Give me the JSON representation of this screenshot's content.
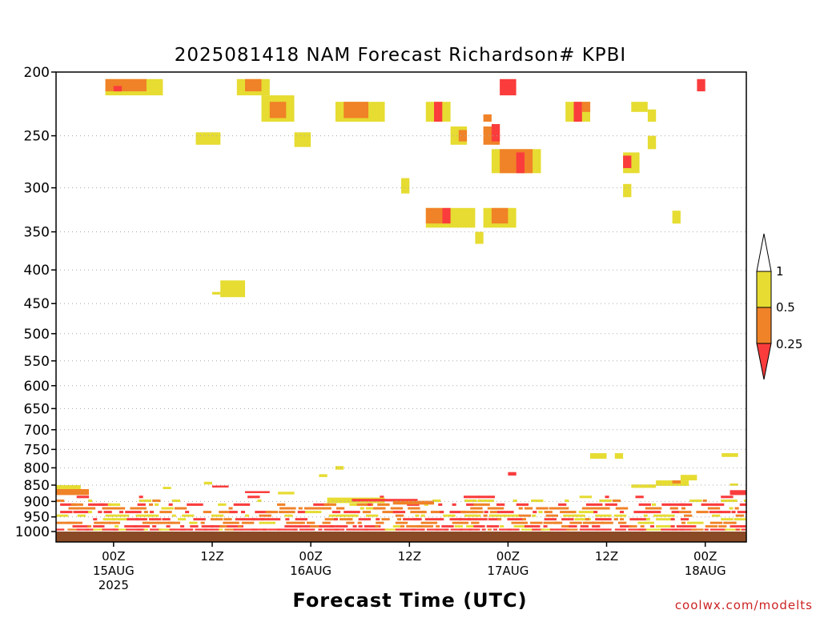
{
  "chart_data": {
    "type": "heatmap",
    "title": "2025081418 NAM Forecast Richardson# KPBI",
    "xlabel": "Forecast Time (UTC)",
    "ylabel": "",
    "credit": "coolwx.com/modelts",
    "grid": true,
    "y_scale": "log-pressure, inverted",
    "ylim": [
      1000,
      200
    ],
    "y_ticks": [
      {
        "value": 200,
        "label": "200"
      },
      {
        "value": 250,
        "label": "250"
      },
      {
        "value": 300,
        "label": "300"
      },
      {
        "value": 350,
        "label": "350"
      },
      {
        "value": 400,
        "label": "400"
      },
      {
        "value": 450,
        "label": "450"
      },
      {
        "value": 500,
        "label": "500"
      },
      {
        "value": 550,
        "label": "550"
      },
      {
        "value": 600,
        "label": "600"
      },
      {
        "value": 650,
        "label": "650"
      },
      {
        "value": 700,
        "label": "700"
      },
      {
        "value": 750,
        "label": "750"
      },
      {
        "value": 800,
        "label": "800"
      },
      {
        "value": 850,
        "label": "850"
      },
      {
        "value": 900,
        "label": "900"
      },
      {
        "value": 950,
        "label": "950"
      },
      {
        "value": 1000,
        "label": "1000"
      }
    ],
    "x_range_hours": [
      -7,
      77
    ],
    "x_ticks": [
      {
        "hour": 0,
        "lines": [
          "00Z",
          "15AUG",
          "2025"
        ]
      },
      {
        "hour": 12,
        "lines": [
          "12Z"
        ]
      },
      {
        "hour": 24,
        "lines": [
          "00Z",
          "16AUG"
        ]
      },
      {
        "hour": 36,
        "lines": [
          "12Z"
        ]
      },
      {
        "hour": 48,
        "lines": [
          "00Z",
          "17AUG"
        ]
      },
      {
        "hour": 60,
        "lines": [
          "12Z"
        ]
      },
      {
        "hour": 72,
        "lines": [
          "00Z",
          "18AUG"
        ]
      }
    ],
    "legend": {
      "placement": "right",
      "labels": [
        "1",
        "0.5",
        "0.25"
      ],
      "bins": [
        {
          "range": "> 1",
          "color": "#ffffff"
        },
        {
          "range": "0.5 - 1",
          "color": "#e6dc32"
        },
        {
          "range": "0.25 - 0.5",
          "color": "#f08228"
        },
        {
          "range": "< 0.25",
          "color": "#fa3c3c"
        }
      ]
    },
    "colors": {
      "low": "#fa3c3c",
      "mid": "#f08228",
      "high": "#e6dc32",
      "ground": "#8b4a26"
    },
    "upper_regions": [
      {
        "h0": -1,
        "h1": 6,
        "p0": 205,
        "p1": 217,
        "c": "high"
      },
      {
        "h0": -1,
        "h1": 4,
        "p0": 205,
        "p1": 214,
        "c": "mid"
      },
      {
        "h0": 0,
        "h1": 1,
        "p0": 210,
        "p1": 214,
        "c": "low"
      },
      {
        "h0": 15,
        "h1": 19,
        "p0": 205,
        "p1": 217,
        "c": "high"
      },
      {
        "h0": 16,
        "h1": 18,
        "p0": 205,
        "p1": 214,
        "c": "mid"
      },
      {
        "h0": 18,
        "h1": 22,
        "p0": 217,
        "p1": 238,
        "c": "high"
      },
      {
        "h0": 19,
        "h1": 21,
        "p0": 222,
        "p1": 235,
        "c": "mid"
      },
      {
        "h0": 27,
        "h1": 33,
        "p0": 222,
        "p1": 238,
        "c": "high"
      },
      {
        "h0": 28,
        "h1": 31,
        "p0": 222,
        "p1": 235,
        "c": "mid"
      },
      {
        "h0": 10,
        "h1": 13,
        "p0": 247,
        "p1": 258,
        "c": "high"
      },
      {
        "h0": 22,
        "h1": 24,
        "p0": 247,
        "p1": 260,
        "c": "high"
      },
      {
        "h0": 35,
        "h1": 36,
        "p0": 290,
        "p1": 306,
        "c": "high"
      },
      {
        "h0": 38,
        "h1": 41,
        "p0": 222,
        "p1": 238,
        "c": "high"
      },
      {
        "h0": 39,
        "h1": 40,
        "p0": 222,
        "p1": 238,
        "c": "low"
      },
      {
        "h0": 41,
        "h1": 43,
        "p0": 242,
        "p1": 258,
        "c": "high"
      },
      {
        "h0": 42,
        "h1": 43,
        "p0": 245,
        "p1": 255,
        "c": "mid"
      },
      {
        "h0": 45,
        "h1": 46,
        "p0": 232,
        "p1": 238,
        "c": "mid"
      },
      {
        "h0": 45,
        "h1": 47,
        "p0": 242,
        "p1": 258,
        "c": "mid"
      },
      {
        "h0": 46,
        "h1": 47,
        "p0": 240,
        "p1": 255,
        "c": "low"
      },
      {
        "h0": 47,
        "h1": 49,
        "p0": 205,
        "p1": 217,
        "c": "low"
      },
      {
        "h0": 46,
        "h1": 52,
        "p0": 262,
        "p1": 285,
        "c": "high"
      },
      {
        "h0": 47,
        "h1": 51,
        "p0": 262,
        "p1": 285,
        "c": "mid"
      },
      {
        "h0": 49,
        "h1": 50,
        "p0": 265,
        "p1": 285,
        "c": "low"
      },
      {
        "h0": 55,
        "h1": 58,
        "p0": 222,
        "p1": 238,
        "c": "high"
      },
      {
        "h0": 56,
        "h1": 57,
        "p0": 222,
        "p1": 238,
        "c": "low"
      },
      {
        "h0": 57,
        "h1": 58,
        "p0": 222,
        "p1": 230,
        "c": "mid"
      },
      {
        "h0": 63,
        "h1": 65,
        "p0": 222,
        "p1": 230,
        "c": "high"
      },
      {
        "h0": 62,
        "h1": 64,
        "p0": 265,
        "p1": 285,
        "c": "high"
      },
      {
        "h0": 62,
        "h1": 63,
        "p0": 268,
        "p1": 280,
        "c": "low"
      },
      {
        "h0": 65,
        "h1": 66,
        "p0": 250,
        "p1": 262,
        "c": "high"
      },
      {
        "h0": 71,
        "h1": 72,
        "p0": 205,
        "p1": 214,
        "c": "low"
      },
      {
        "h0": 62,
        "h1": 63,
        "p0": 296,
        "p1": 310,
        "c": "high"
      },
      {
        "h0": 38,
        "h1": 44,
        "p0": 322,
        "p1": 345,
        "c": "high"
      },
      {
        "h0": 38,
        "h1": 40,
        "p0": 322,
        "p1": 340,
        "c": "mid"
      },
      {
        "h0": 40,
        "h1": 41,
        "p0": 322,
        "p1": 340,
        "c": "low"
      },
      {
        "h0": 44,
        "h1": 45,
        "p0": 350,
        "p1": 365,
        "c": "high"
      },
      {
        "h0": 45,
        "h1": 49,
        "p0": 322,
        "p1": 345,
        "c": "high"
      },
      {
        "h0": 46,
        "h1": 48,
        "p0": 322,
        "p1": 340,
        "c": "mid"
      },
      {
        "h0": 13,
        "h1": 16,
        "p0": 415,
        "p1": 440,
        "c": "high"
      },
      {
        "h0": 12,
        "h1": 13,
        "p0": 432,
        "p1": 436,
        "c": "high"
      },
      {
        "h0": 68,
        "h1": 69,
        "p0": 325,
        "p1": 340,
        "c": "high"
      },
      {
        "h0": 65,
        "h1": 66,
        "p0": 228,
        "p1": 238,
        "c": "high"
      }
    ],
    "pbl_rows": [
      {
        "p0": 990,
        "p1": 1000,
        "c": "low",
        "density": 0.9
      },
      {
        "p0": 978,
        "p1": 990,
        "c": "low",
        "density": 0.55
      },
      {
        "p0": 966,
        "p1": 978,
        "c": "mid",
        "density": 0.35
      },
      {
        "p0": 954,
        "p1": 966,
        "c": "low",
        "density": 0.45
      },
      {
        "p0": 942,
        "p1": 954,
        "c": "high",
        "density": 0.35
      },
      {
        "p0": 930,
        "p1": 942,
        "c": "low",
        "density": 0.4
      },
      {
        "p0": 918,
        "p1": 930,
        "c": "mid",
        "density": 0.3
      },
      {
        "p0": 906,
        "p1": 918,
        "c": "low",
        "density": 0.25
      },
      {
        "p0": 894,
        "p1": 906,
        "c": "high",
        "density": 0.15
      },
      {
        "p0": 882,
        "p1": 894,
        "c": "low",
        "density": 0.08
      }
    ],
    "pbl_features": [
      {
        "h0": 26,
        "h1": 33,
        "p0": 888,
        "p1": 905,
        "c": "high"
      },
      {
        "h0": 29,
        "h1": 37,
        "p0": 892,
        "p1": 900,
        "c": "low"
      },
      {
        "h0": 34,
        "h1": 39,
        "p0": 898,
        "p1": 910,
        "c": "mid"
      },
      {
        "h0": 63,
        "h1": 66,
        "p0": 848,
        "p1": 858,
        "c": "high"
      },
      {
        "h0": 66,
        "h1": 70,
        "p0": 836,
        "p1": 852,
        "c": "high"
      },
      {
        "h0": 68,
        "h1": 69,
        "p0": 836,
        "p1": 845,
        "c": "mid"
      },
      {
        "h0": 69,
        "h1": 71,
        "p0": 820,
        "p1": 836,
        "c": "high"
      },
      {
        "h0": 12,
        "h1": 14,
        "p0": 851,
        "p1": 857,
        "c": "low"
      },
      {
        "h0": 20,
        "h1": 22,
        "p0": 870,
        "p1": 878,
        "c": "high"
      },
      {
        "h0": 16,
        "h1": 19,
        "p0": 868,
        "p1": 874,
        "c": "low"
      },
      {
        "h0": 61,
        "h1": 62,
        "p0": 760,
        "p1": 775,
        "c": "high"
      },
      {
        "h0": 58,
        "h1": 60,
        "p0": 760,
        "p1": 775,
        "c": "high"
      },
      {
        "h0": 74,
        "h1": 76,
        "p0": 760,
        "p1": 770,
        "c": "high"
      },
      {
        "h0": 27,
        "h1": 28,
        "p0": 795,
        "p1": 805,
        "c": "high"
      },
      {
        "h0": 25,
        "h1": 26,
        "p0": 818,
        "p1": 826,
        "c": "high"
      },
      {
        "h0": 48,
        "h1": 49,
        "p0": 812,
        "p1": 822,
        "c": "low"
      },
      {
        "h0": 11,
        "h1": 12,
        "p0": 840,
        "p1": 848,
        "c": "high"
      },
      {
        "h0": 6,
        "h1": 7,
        "p0": 855,
        "p1": 862,
        "c": "high"
      },
      {
        "h0": 75,
        "h1": 76,
        "p0": 845,
        "p1": 852,
        "c": "high"
      },
      {
        "h0": -7,
        "h1": -4,
        "p0": 850,
        "p1": 870,
        "c": "high"
      },
      {
        "h0": -7,
        "h1": -3,
        "p0": 862,
        "p1": 880,
        "c": "mid"
      },
      {
        "h0": 75,
        "h1": 77,
        "p0": 865,
        "p1": 880,
        "c": "low"
      }
    ]
  }
}
